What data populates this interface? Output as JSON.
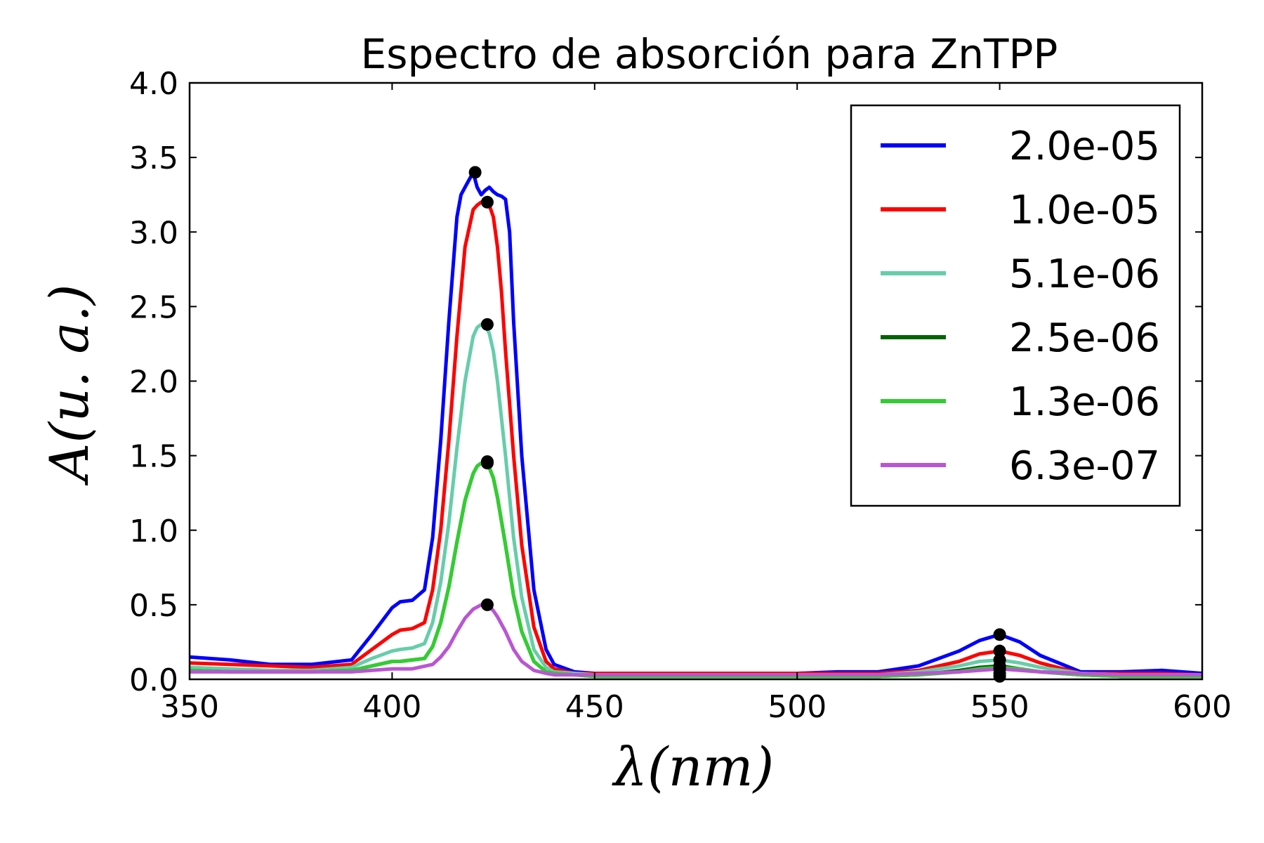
{
  "chart_data": {
    "type": "line",
    "title": "Espectro de absorción para ZnTPP",
    "xlabel": "λ(nm)",
    "ylabel": "A(u. a.)",
    "xlim": [
      350,
      600
    ],
    "ylim": [
      0.0,
      4.0
    ],
    "xticks": [
      "350",
      "400",
      "450",
      "500",
      "550",
      "600"
    ],
    "yticks": [
      "0.0",
      "0.5",
      "1.0",
      "1.5",
      "2.0",
      "2.5",
      "3.0",
      "3.5",
      "4.0"
    ],
    "grid": false,
    "legend_position": "top-right",
    "series": [
      {
        "name": "2.0e-05",
        "color": "#0000ff",
        "x": [
          350,
          360,
          370,
          380,
          390,
          395,
          400,
          402,
          405,
          408,
          410,
          412,
          414,
          416,
          417,
          418,
          419,
          420,
          421,
          422,
          423,
          424,
          425,
          426,
          427,
          428,
          429,
          430,
          432,
          435,
          438,
          440,
          445,
          450,
          500,
          510,
          520,
          530,
          540,
          545,
          550,
          555,
          560,
          570,
          580,
          590,
          600
        ],
        "y": [
          0.15,
          0.13,
          0.1,
          0.1,
          0.13,
          0.3,
          0.48,
          0.52,
          0.53,
          0.6,
          0.95,
          1.6,
          2.4,
          3.1,
          3.25,
          3.3,
          3.35,
          3.4,
          3.3,
          3.25,
          3.28,
          3.3,
          3.27,
          3.25,
          3.24,
          3.22,
          3.0,
          2.4,
          1.5,
          0.6,
          0.2,
          0.1,
          0.05,
          0.04,
          0.04,
          0.05,
          0.05,
          0.09,
          0.19,
          0.26,
          0.3,
          0.25,
          0.16,
          0.05,
          0.05,
          0.06,
          0.04
        ]
      },
      {
        "name": "1.0e-05",
        "color": "#ff0000",
        "x": [
          350,
          360,
          370,
          380,
          390,
          395,
          400,
          402,
          405,
          408,
          410,
          412,
          414,
          416,
          418,
          420,
          421,
          422,
          423,
          424,
          425,
          426,
          427,
          428,
          430,
          432,
          435,
          438,
          440,
          445,
          450,
          500,
          510,
          520,
          530,
          540,
          545,
          550,
          555,
          560,
          570,
          580,
          590,
          600
        ],
        "y": [
          0.11,
          0.1,
          0.09,
          0.08,
          0.1,
          0.2,
          0.3,
          0.33,
          0.34,
          0.38,
          0.6,
          1.0,
          1.6,
          2.3,
          2.9,
          3.15,
          3.18,
          3.2,
          3.2,
          3.18,
          3.1,
          2.9,
          2.6,
          2.2,
          1.5,
          0.9,
          0.35,
          0.12,
          0.07,
          0.04,
          0.04,
          0.04,
          0.04,
          0.04,
          0.06,
          0.12,
          0.17,
          0.19,
          0.16,
          0.11,
          0.04,
          0.04,
          0.04,
          0.03
        ]
      },
      {
        "name": "5.1e-06",
        "color": "#66cdaa",
        "x": [
          350,
          360,
          370,
          380,
          390,
          395,
          400,
          402,
          405,
          408,
          410,
          412,
          414,
          416,
          418,
          420,
          421,
          422,
          423,
          424,
          425,
          426,
          428,
          430,
          432,
          435,
          438,
          440,
          445,
          450,
          500,
          520,
          530,
          540,
          545,
          550,
          555,
          560,
          570,
          580,
          600
        ],
        "y": [
          0.08,
          0.07,
          0.06,
          0.06,
          0.08,
          0.14,
          0.19,
          0.2,
          0.21,
          0.24,
          0.38,
          0.65,
          1.05,
          1.55,
          2.0,
          2.3,
          2.36,
          2.38,
          2.37,
          2.32,
          2.2,
          2.0,
          1.5,
          0.95,
          0.55,
          0.2,
          0.08,
          0.05,
          0.04,
          0.03,
          0.03,
          0.03,
          0.05,
          0.09,
          0.12,
          0.13,
          0.11,
          0.08,
          0.04,
          0.03,
          0.03
        ]
      },
      {
        "name": "2.5e-06",
        "color": "#006400",
        "x": [
          350,
          360,
          370,
          380,
          390,
          395,
          400,
          402,
          405,
          408,
          410,
          412,
          414,
          416,
          418,
          420,
          421,
          422,
          423,
          424,
          425,
          426,
          428,
          430,
          432,
          435,
          438,
          440,
          445,
          450,
          500,
          520,
          530,
          540,
          545,
          550,
          555,
          560,
          570,
          580,
          600
        ],
        "y": [
          0.06,
          0.05,
          0.05,
          0.05,
          0.06,
          0.09,
          0.12,
          0.12,
          0.13,
          0.14,
          0.22,
          0.38,
          0.62,
          0.92,
          1.2,
          1.38,
          1.43,
          1.45,
          1.45,
          1.42,
          1.35,
          1.22,
          0.9,
          0.56,
          0.32,
          0.12,
          0.05,
          0.04,
          0.03,
          0.02,
          0.02,
          0.02,
          0.03,
          0.06,
          0.08,
          0.09,
          0.07,
          0.05,
          0.03,
          0.02,
          0.02
        ]
      },
      {
        "name": "1.3e-06",
        "color": "#32cd32",
        "x": [
          350,
          360,
          370,
          380,
          390,
          395,
          400,
          402,
          405,
          408,
          410,
          412,
          414,
          416,
          418,
          420,
          421,
          422,
          423,
          424,
          425,
          426,
          428,
          430,
          432,
          435,
          438,
          440,
          445,
          450,
          500,
          520,
          530,
          540,
          545,
          550,
          555,
          560,
          570,
          580,
          600
        ],
        "y": [
          0.06,
          0.05,
          0.05,
          0.05,
          0.06,
          0.09,
          0.12,
          0.12,
          0.13,
          0.14,
          0.22,
          0.38,
          0.62,
          0.92,
          1.2,
          1.38,
          1.43,
          1.45,
          1.45,
          1.42,
          1.35,
          1.22,
          0.9,
          0.56,
          0.32,
          0.12,
          0.05,
          0.04,
          0.03,
          0.02,
          0.02,
          0.02,
          0.03,
          0.05,
          0.07,
          0.08,
          0.07,
          0.05,
          0.03,
          0.02,
          0.02
        ]
      },
      {
        "name": "6.3e-07",
        "color": "#ba55d3",
        "x": [
          350,
          360,
          370,
          380,
          390,
          395,
          400,
          405,
          410,
          412,
          414,
          416,
          418,
          420,
          422,
          423,
          424,
          425,
          426,
          428,
          430,
          432,
          435,
          438,
          440,
          445,
          450,
          500,
          520,
          530,
          540,
          545,
          550,
          555,
          560,
          570,
          580,
          600
        ],
        "y": [
          0.05,
          0.05,
          0.05,
          0.05,
          0.05,
          0.06,
          0.07,
          0.07,
          0.1,
          0.15,
          0.22,
          0.32,
          0.41,
          0.47,
          0.5,
          0.5,
          0.49,
          0.46,
          0.42,
          0.32,
          0.2,
          0.12,
          0.06,
          0.04,
          0.03,
          0.03,
          0.03,
          0.03,
          0.03,
          0.04,
          0.05,
          0.06,
          0.07,
          0.06,
          0.05,
          0.04,
          0.03,
          0.03
        ]
      }
    ],
    "peak_markers": {
      "color": "#000000",
      "points": [
        {
          "x": 420.5,
          "y": 3.4
        },
        {
          "x": 423.5,
          "y": 3.2
        },
        {
          "x": 423.5,
          "y": 2.38
        },
        {
          "x": 423.5,
          "y": 1.46
        },
        {
          "x": 423.5,
          "y": 1.45
        },
        {
          "x": 423.5,
          "y": 0.5
        },
        {
          "x": 550,
          "y": 0.3
        },
        {
          "x": 550,
          "y": 0.19
        },
        {
          "x": 550,
          "y": 0.13
        },
        {
          "x": 550,
          "y": 0.09
        },
        {
          "x": 550,
          "y": 0.07
        },
        {
          "x": 550,
          "y": 0.04
        },
        {
          "x": 550,
          "y": 0.02
        }
      ]
    }
  }
}
